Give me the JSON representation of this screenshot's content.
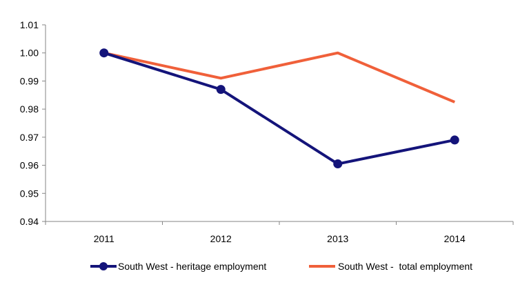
{
  "chart_data": {
    "type": "line",
    "title": "",
    "xlabel": "",
    "ylabel": "",
    "categories": [
      "2011",
      "2012",
      "2013",
      "2014"
    ],
    "ylim": [
      0.94,
      1.01
    ],
    "yticks": [
      "0.94",
      "0.95",
      "0.96",
      "0.97",
      "0.98",
      "0.99",
      "1.00",
      "1.01"
    ],
    "grid": false,
    "legend_position": "bottom",
    "series": [
      {
        "name": "South West - heritage employment",
        "values": [
          1.0,
          0.987,
          0.9605,
          0.969
        ],
        "color": "#14147A",
        "markers": true
      },
      {
        "name": "South West -  total employment",
        "values": [
          1.0,
          0.991,
          1.0,
          0.9825
        ],
        "color": "#F0603A",
        "markers": false
      }
    ]
  }
}
